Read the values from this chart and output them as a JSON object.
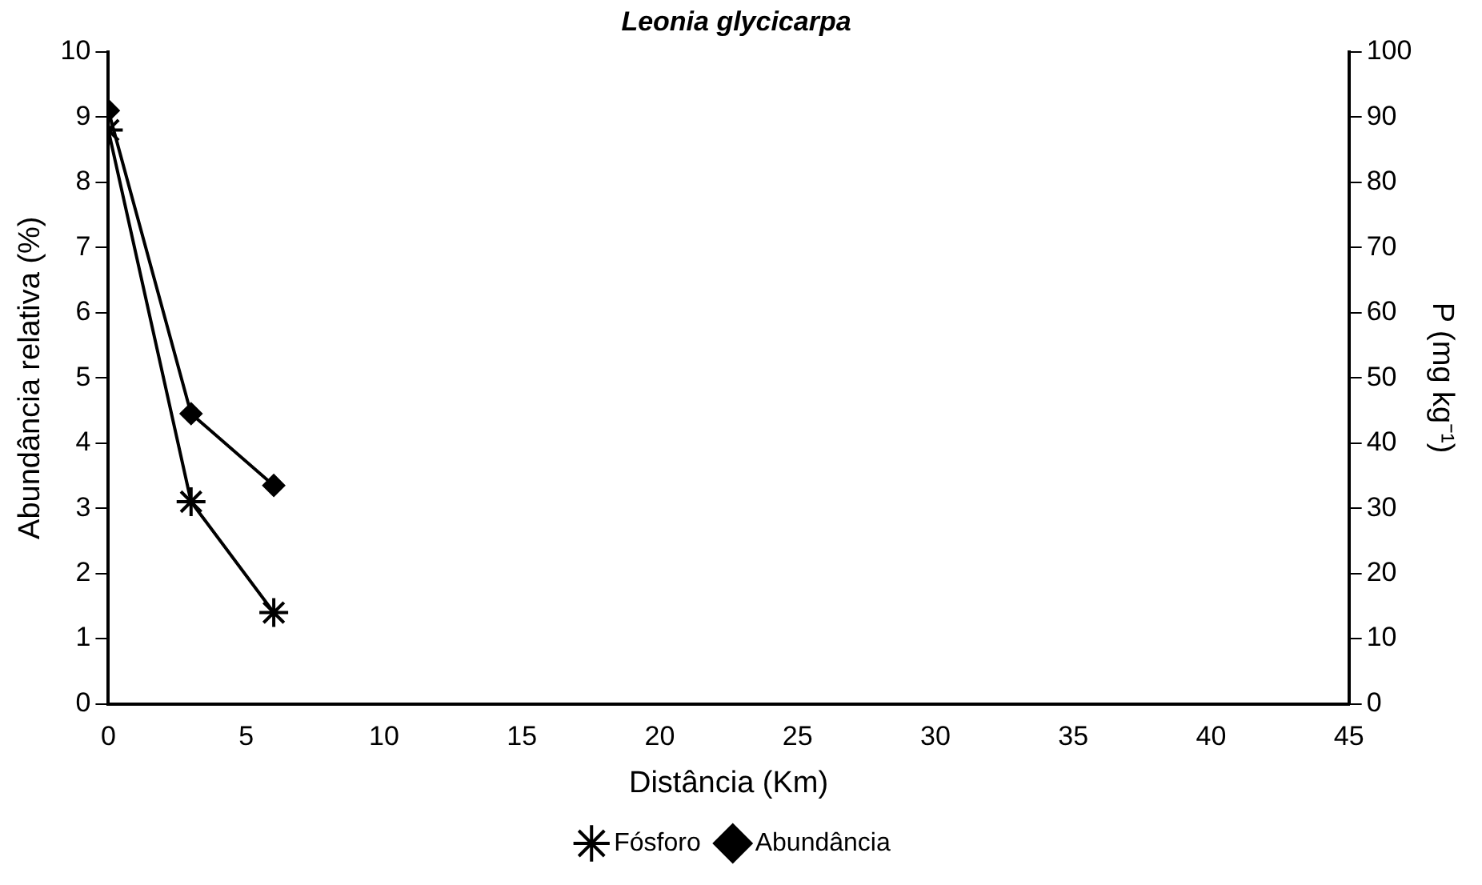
{
  "chart_data": {
    "type": "line",
    "title": "Leonia glycicarpa",
    "xlabel": "Distância (Km)",
    "ylabel": "Abundância relativa (%)",
    "y2label": "P (mg kg⁻¹)",
    "series": [
      {
        "name": "Abundância",
        "color": "#000000",
        "x": [
          0,
          3,
          6
        ],
        "values": [
          9.1,
          4.45,
          3.35
        ],
        "marker": "diamond"
      },
      {
        "name": "Fósforo",
        "color": "#000000",
        "x": [
          0,
          3,
          6
        ],
        "values": [
          88,
          31,
          14
        ],
        "marker": "cross",
        "axis": "y2"
      }
    ],
    "xlim": [
      0,
      45
    ],
    "xticks": [
      0,
      5,
      10,
      15,
      20,
      25,
      30,
      35,
      40,
      45
    ],
    "ylim": [
      0,
      10
    ],
    "yticks": [
      0,
      1,
      2,
      3,
      4,
      5,
      6,
      7,
      8,
      9,
      10
    ],
    "y2lim": [
      0,
      100
    ],
    "y2ticks": [
      0,
      10,
      20,
      30,
      40,
      50,
      60,
      70,
      80,
      90,
      100
    ],
    "grid": false,
    "legend": "bottom",
    "line_style": "solid"
  }
}
